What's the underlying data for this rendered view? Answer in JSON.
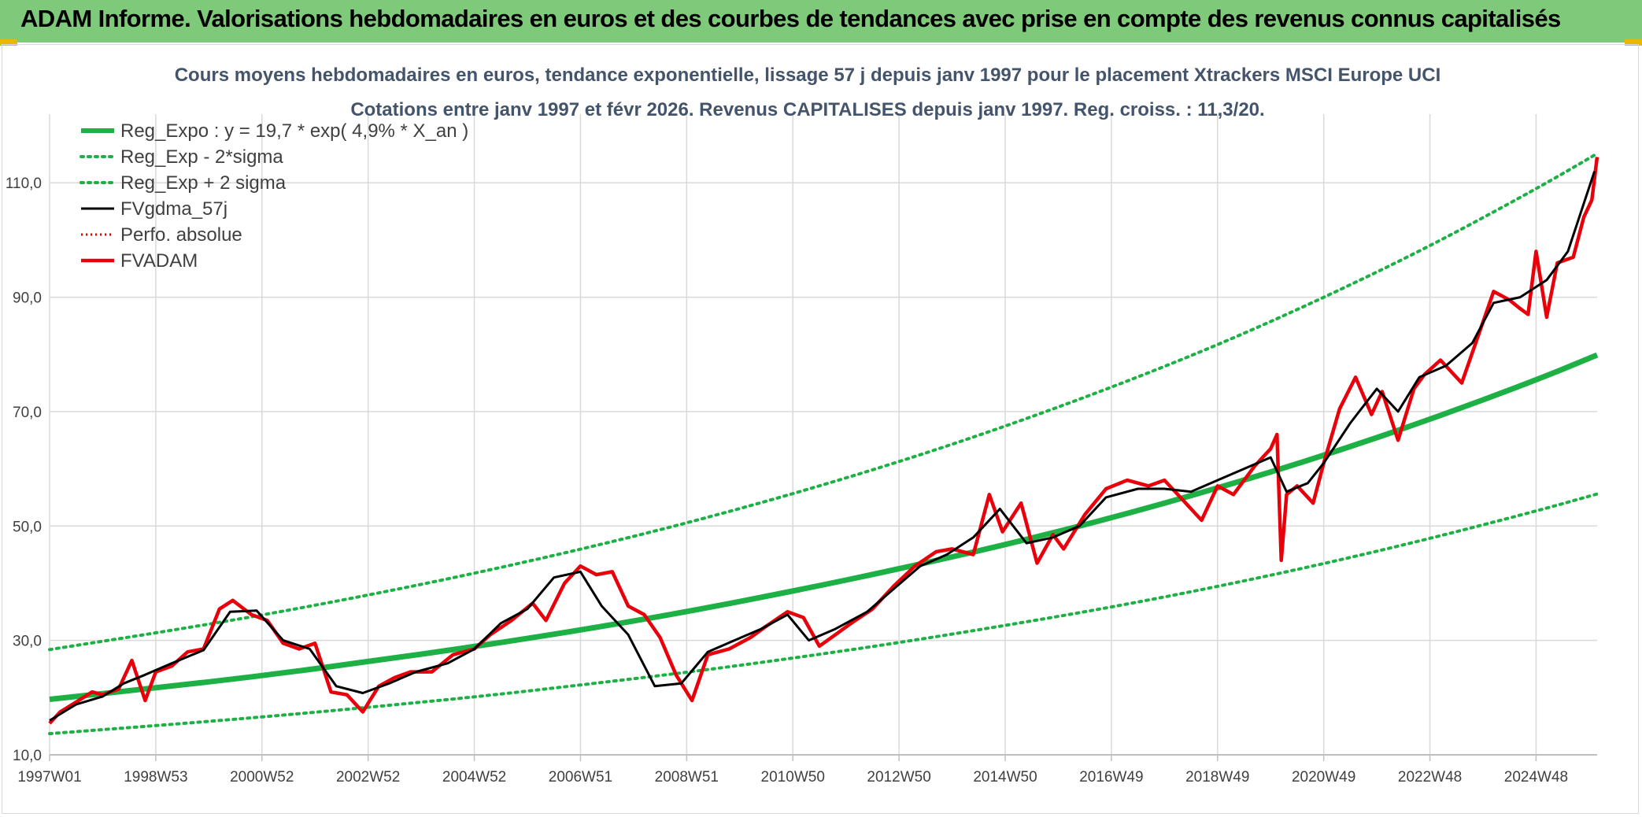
{
  "banner": {
    "title": "ADAM Informe. Valorisations hebdomadaires en euros et des courbes de tendances avec prise en compte des revenus connus capitalisés"
  },
  "chart_data": {
    "type": "line",
    "title": "Cours moyens hebdomadaires en euros, tendance exponentielle, lissage 57 j depuis janv 1997 pour le placement Xtrackers MSCI Europe UCI",
    "subtitle": "Cotations entre janv 1997 et févr 2026. Revenus CAPITALISES depuis janv 1997. Reg. croiss. : 11,3/20.",
    "xlabel": "",
    "ylabel": "",
    "x_tick_labels": [
      "1997W01",
      "1998W53",
      "2000W52",
      "2002W52",
      "2004W52",
      "2006W51",
      "2008W51",
      "2010W50",
      "2012W50",
      "2014W50",
      "2016W49",
      "2018W49",
      "2020W49",
      "2022W48",
      "2024W48"
    ],
    "x_tick_years": [
      1997.0,
      1999.0,
      2001.0,
      2003.0,
      2005.0,
      2007.0,
      2009.0,
      2011.0,
      2013.0,
      2015.0,
      2017.0,
      2019.0,
      2021.0,
      2023.0,
      2025.0
    ],
    "xlim": [
      1997.0,
      2026.15
    ],
    "y_tick_labels": [
      "10,0",
      "30,0",
      "50,0",
      "70,0",
      "90,0",
      "110,0"
    ],
    "y_ticks": [
      10,
      30,
      50,
      70,
      90,
      110
    ],
    "ylim": [
      10,
      122
    ],
    "grid": true,
    "legend_position": "top-left",
    "colors": {
      "trend": "#1db045",
      "sigma": "#1db045",
      "smooth": "#000000",
      "perfo": "#e00000",
      "fvadam": "#e8000b",
      "grid": "#d9d9d9",
      "title": "#44546a"
    },
    "series": [
      {
        "name": "Reg_Expo : y = 19,7 * exp( 4,9% *  X_an )",
        "style": "solid-thick",
        "x": [
          1997.0,
          1999.0,
          2001.0,
          2003.0,
          2005.0,
          2007.0,
          2009.0,
          2011.0,
          2013.0,
          2015.0,
          2017.0,
          2019.0,
          2021.0,
          2023.0,
          2025.0,
          2026.15
        ],
        "values": [
          19.7,
          21.7,
          23.8,
          26.3,
          28.9,
          31.8,
          35.0,
          38.6,
          42.5,
          46.7,
          51.4,
          56.6,
          62.3,
          68.6,
          75.5,
          79.9
        ]
      },
      {
        "name": "Reg_Exp - 2*sigma",
        "style": "dotted",
        "x": [
          1997.0,
          1999.0,
          2001.0,
          2003.0,
          2005.0,
          2007.0,
          2009.0,
          2011.0,
          2013.0,
          2015.0,
          2017.0,
          2019.0,
          2021.0,
          2023.0,
          2025.0,
          2026.15
        ],
        "values": [
          13.7,
          15.1,
          16.6,
          18.3,
          20.1,
          22.2,
          24.4,
          26.9,
          29.6,
          32.6,
          35.8,
          39.4,
          43.4,
          47.8,
          52.6,
          55.6
        ]
      },
      {
        "name": "Reg_Exp + 2 sigma",
        "style": "dotted",
        "x": [
          1997.0,
          1999.0,
          2001.0,
          2003.0,
          2005.0,
          2007.0,
          2009.0,
          2011.0,
          2013.0,
          2015.0,
          2017.0,
          2019.0,
          2021.0,
          2023.0,
          2025.0,
          2026.15
        ],
        "values": [
          28.4,
          31.3,
          34.4,
          37.9,
          41.7,
          45.9,
          50.5,
          55.6,
          61.2,
          67.4,
          74.2,
          81.6,
          89.9,
          98.9,
          108.9,
          115.1
        ]
      },
      {
        "name": "FVgdma_57j",
        "style": "solid",
        "x": [
          1997.0,
          1997.5,
          1998.0,
          1998.4,
          1998.8,
          1999.3,
          1999.9,
          2000.4,
          2000.9,
          2001.4,
          2001.9,
          2002.4,
          2002.9,
          2003.4,
          2003.9,
          2004.5,
          2005.0,
          2005.5,
          2006.0,
          2006.5,
          2007.0,
          2007.4,
          2007.9,
          2008.4,
          2008.9,
          2009.4,
          2009.9,
          2010.4,
          2010.9,
          2011.3,
          2011.8,
          2012.4,
          2012.9,
          2013.4,
          2013.9,
          2014.4,
          2014.9,
          2015.4,
          2015.9,
          2016.4,
          2016.9,
          2017.5,
          2018.0,
          2018.5,
          2019.0,
          2019.5,
          2020.0,
          2020.3,
          2020.7,
          2021.0,
          2021.5,
          2022.0,
          2022.4,
          2022.8,
          2023.3,
          2023.8,
          2024.2,
          2024.7,
          2025.2,
          2025.6,
          2026.1
        ],
        "values": [
          16.0,
          18.8,
          20.2,
          22.5,
          24.0,
          26.0,
          28.3,
          35.0,
          35.2,
          30.0,
          28.5,
          22.0,
          20.8,
          22.5,
          24.5,
          26.0,
          28.5,
          33.0,
          35.5,
          41.0,
          42.0,
          36.0,
          31.0,
          22.0,
          22.5,
          28.0,
          30.0,
          32.0,
          34.5,
          30.0,
          32.0,
          35.0,
          39.0,
          43.0,
          45.0,
          48.0,
          53.0,
          47.0,
          48.0,
          50.0,
          55.0,
          56.5,
          56.5,
          56.0,
          58.0,
          60.0,
          62.0,
          56.0,
          57.5,
          61.0,
          68.0,
          74.0,
          70.0,
          76.0,
          78.0,
          82.0,
          89.0,
          90.0,
          93.0,
          98.0,
          112.0
        ]
      },
      {
        "name": "Perfo. absolue",
        "style": "dotted",
        "x": [],
        "values": []
      },
      {
        "name": "FVADAM",
        "style": "solid-thick",
        "x": [
          1997.0,
          1997.2,
          1997.5,
          1997.8,
          1998.0,
          1998.3,
          1998.55,
          1998.8,
          1999.0,
          1999.3,
          1999.6,
          1999.9,
          2000.2,
          2000.45,
          2000.8,
          2001.1,
          2001.4,
          2001.7,
          2002.0,
          2002.3,
          2002.6,
          2002.9,
          2003.2,
          2003.5,
          2003.8,
          2004.2,
          2004.6,
          2005.0,
          2005.3,
          2005.7,
          2006.1,
          2006.35,
          2006.7,
          2007.0,
          2007.3,
          2007.6,
          2007.9,
          2008.2,
          2008.5,
          2008.8,
          2009.1,
          2009.4,
          2009.8,
          2010.2,
          2010.5,
          2010.9,
          2011.2,
          2011.5,
          2011.8,
          2012.1,
          2012.5,
          2012.9,
          2013.3,
          2013.7,
          2014.0,
          2014.4,
          2014.7,
          2014.95,
          2015.3,
          2015.6,
          2015.9,
          2016.1,
          2016.5,
          2016.9,
          2017.3,
          2017.7,
          2018.0,
          2018.3,
          2018.7,
          2019.0,
          2019.3,
          2019.7,
          2020.0,
          2020.12,
          2020.2,
          2020.3,
          2020.5,
          2020.8,
          2021.0,
          2021.3,
          2021.6,
          2021.9,
          2022.1,
          2022.4,
          2022.7,
          2022.9,
          2023.2,
          2023.6,
          2023.9,
          2024.2,
          2024.5,
          2024.7,
          2024.85,
          2025.0,
          2025.2,
          2025.4,
          2025.7,
          2025.9,
          2026.05,
          2026.15
        ],
        "values": [
          15.5,
          17.5,
          19.2,
          21.0,
          20.5,
          21.5,
          26.5,
          19.5,
          24.5,
          25.5,
          28.0,
          28.5,
          35.5,
          37.0,
          34.5,
          33.5,
          29.5,
          28.5,
          29.5,
          21.0,
          20.5,
          17.5,
          22.0,
          23.5,
          24.5,
          24.5,
          27.5,
          28.5,
          31.0,
          33.5,
          36.5,
          33.5,
          40.0,
          43.0,
          41.5,
          42.0,
          36.0,
          34.5,
          30.5,
          24.0,
          19.5,
          27.5,
          28.5,
          30.5,
          32.5,
          35.0,
          34.0,
          29.0,
          31.0,
          33.0,
          35.5,
          39.5,
          43.0,
          45.5,
          46.0,
          45.0,
          55.5,
          49.0,
          54.0,
          43.5,
          48.5,
          46.0,
          52.0,
          56.5,
          58.0,
          57.0,
          58.0,
          55.0,
          51.0,
          57.0,
          55.5,
          60.5,
          63.5,
          66.0,
          44.0,
          55.5,
          57.0,
          54.0,
          61.0,
          70.5,
          76.0,
          69.5,
          73.5,
          65.0,
          74.0,
          76.5,
          79.0,
          75.0,
          83.0,
          91.0,
          89.5,
          88.0,
          87.0,
          98.0,
          86.5,
          96.0,
          97.0,
          104.0,
          107.0,
          114.5
        ]
      }
    ]
  }
}
